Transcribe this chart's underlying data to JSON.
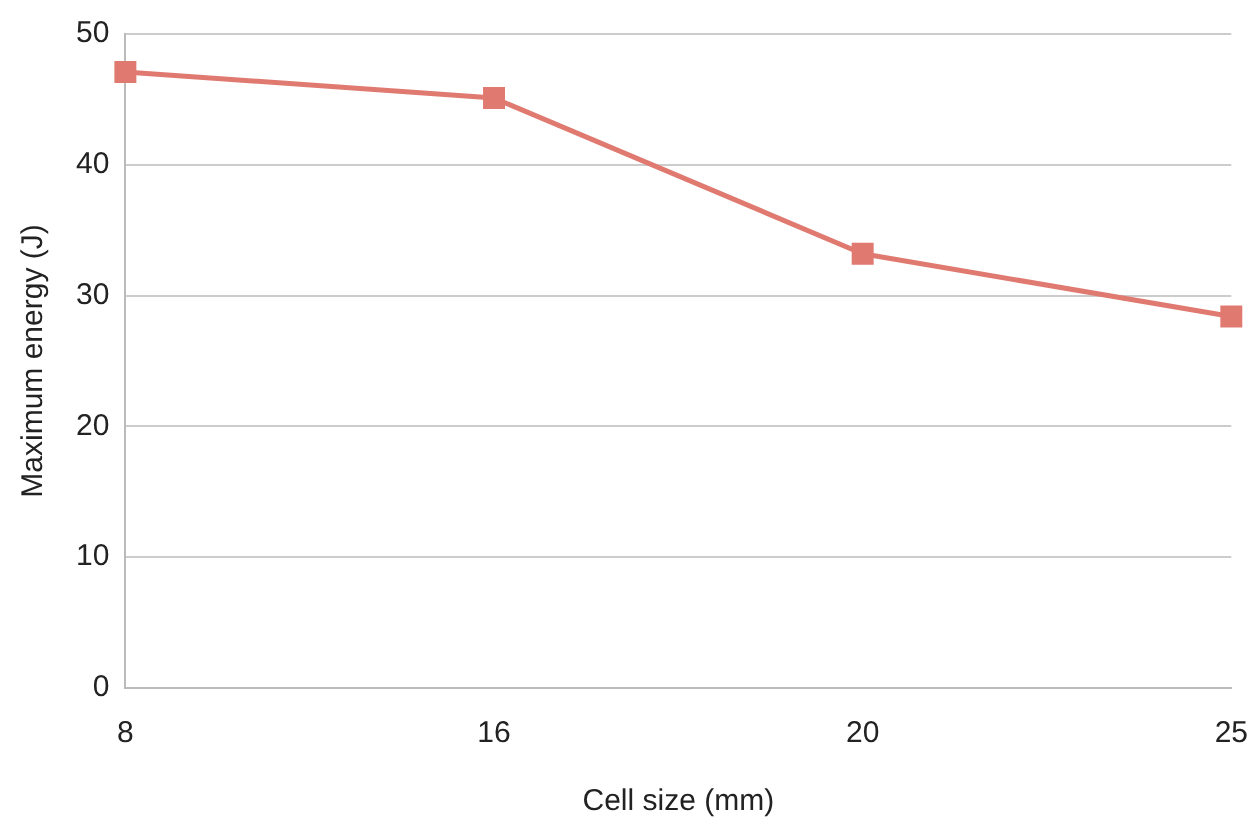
{
  "chart_data": {
    "type": "line",
    "xlabel": "Cell size (mm)",
    "ylabel": "Maximum energy (J)",
    "categories": [
      "8",
      "16",
      "20",
      "25"
    ],
    "series": [
      {
        "color": "#e07a70",
        "values": [
          47.1,
          45.1,
          33.2,
          28.4
        ]
      }
    ],
    "ylim": [
      0,
      50
    ],
    "yticks": [
      0,
      10,
      20,
      30,
      40,
      50
    ],
    "grid": "y",
    "legend": false,
    "marker": "square",
    "line_style": "solid"
  }
}
